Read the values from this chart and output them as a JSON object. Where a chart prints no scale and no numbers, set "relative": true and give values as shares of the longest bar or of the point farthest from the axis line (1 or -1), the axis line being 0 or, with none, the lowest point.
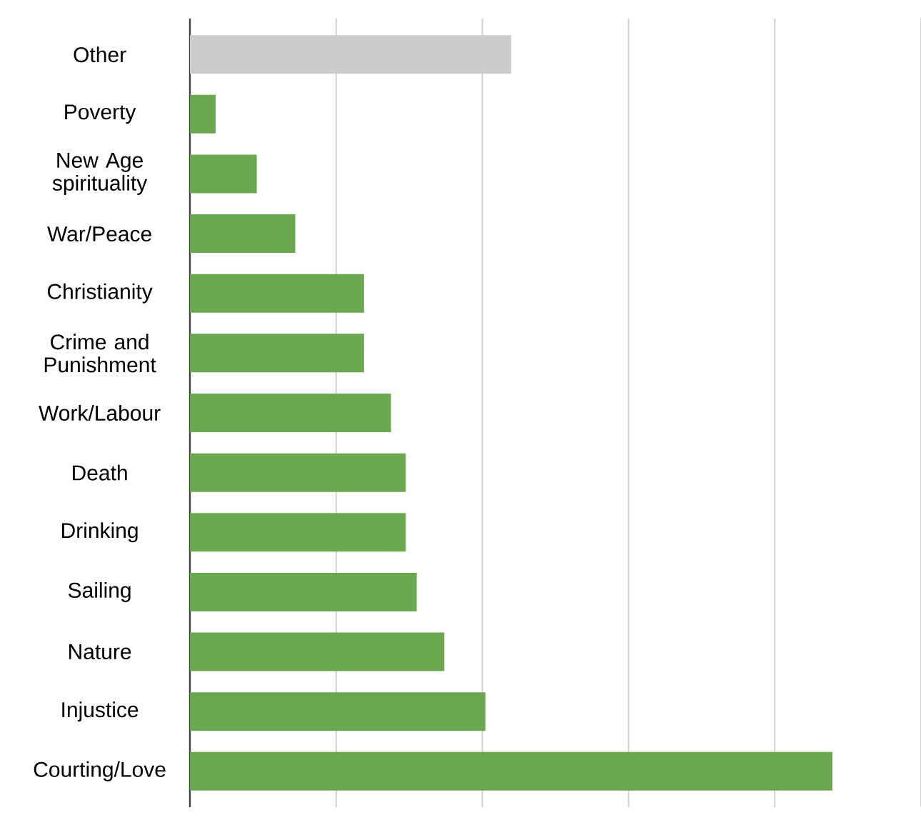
{
  "chart_data": {
    "type": "bar",
    "orientation": "horizontal",
    "relative": true,
    "grid": "x",
    "categories": [
      "Other",
      "Poverty",
      "New Age spirituality",
      "War/Peace",
      "Christianity",
      "Crime and Punishment",
      "Work/Labour",
      "Death",
      "Drinking",
      "Sailing",
      "Nature",
      "Injustice",
      "Courting/Love"
    ],
    "values": [
      0.5,
      0.04,
      0.104,
      0.164,
      0.271,
      0.271,
      0.313,
      0.336,
      0.336,
      0.353,
      0.396,
      0.46,
      1
    ],
    "colors": [
      "#cccccc",
      "#6aa84f",
      "#6aa84f",
      "#6aa84f",
      "#6aa84f",
      "#6aa84f",
      "#6aa84f",
      "#6aa84f",
      "#6aa84f",
      "#6aa84f",
      "#6aa84f",
      "#6aa84f",
      "#6aa84f"
    ]
  }
}
